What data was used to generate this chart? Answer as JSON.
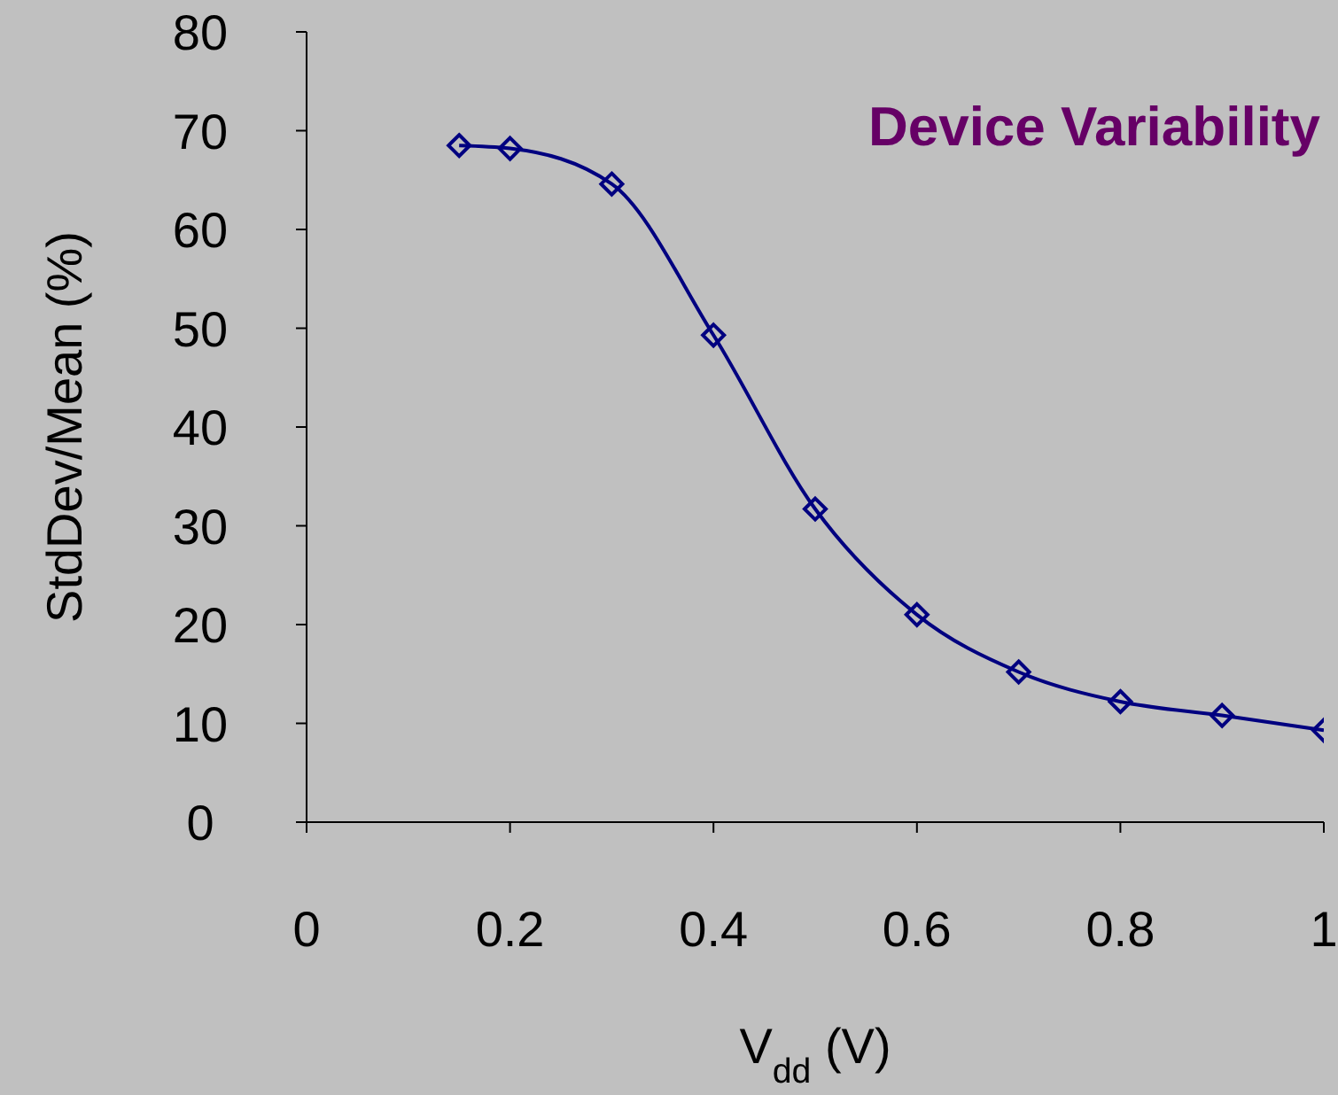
{
  "chart_data": {
    "type": "line",
    "title": "Device Variability",
    "xlabel": "V$_{dd}$ (V)",
    "ylabel": "StdDev/Mean (%)",
    "x": [
      0.15,
      0.2,
      0.3,
      0.4,
      0.5,
      0.6,
      0.7,
      0.8,
      0.9,
      1.0
    ],
    "series": [
      {
        "color": "#000080",
        "values": [
          68.5,
          68.2,
          64.6,
          49.3,
          31.7,
          21.0,
          15.2,
          12.2,
          10.8,
          9.3
        ]
      }
    ],
    "xlim": [
      0,
      1
    ],
    "xticks": [
      0,
      0.2,
      0.4,
      0.6,
      0.8,
      1
    ],
    "ylim": [
      0,
      80
    ],
    "yticks": [
      0,
      10,
      20,
      30,
      40,
      50,
      60,
      70,
      80
    ],
    "grid": false,
    "marker": "diamond",
    "line_style": "solid"
  }
}
